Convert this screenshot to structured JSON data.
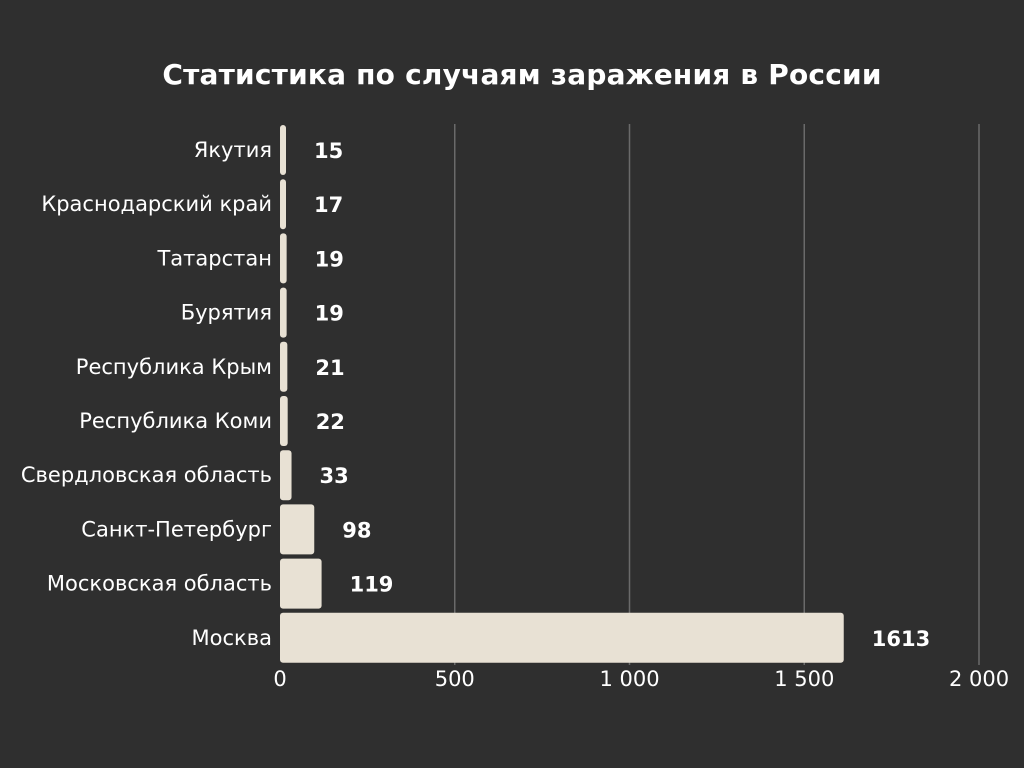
{
  "chart_data": {
    "type": "bar",
    "orientation": "horizontal",
    "title": "Статистика по случаям заражения в России",
    "categories": [
      "Якутия",
      "Краснодарский край",
      "Татарстан",
      "Бурятия",
      "Республика Крым",
      "Республика Коми",
      "Свердловская область",
      "Санкт-Петербург",
      "Московская область",
      "Москва"
    ],
    "values": [
      15,
      17,
      19,
      19,
      21,
      22,
      33,
      98,
      119,
      1613
    ],
    "data_labels": [
      "15",
      "17",
      "19",
      "19",
      "21",
      "22",
      "33",
      "98",
      "119",
      "1613"
    ],
    "xlim": [
      0,
      2000
    ],
    "x_ticks": [
      0,
      500,
      1000,
      1500,
      2000
    ],
    "x_tick_labels": [
      "0",
      "500",
      "1 000",
      "1 500",
      "2 000"
    ],
    "grid": "vertical",
    "colors": {
      "background": "#2f2f2f",
      "bar": "#e8e1d4",
      "text": "#ffffff",
      "grid": "#6a6a6a"
    }
  }
}
